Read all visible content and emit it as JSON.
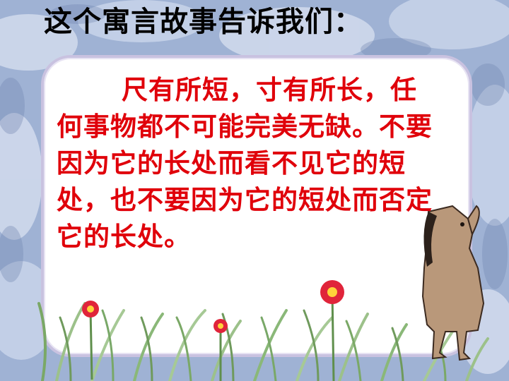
{
  "slide": {
    "title": "这个寓言故事告诉我们：",
    "body": "尺有所短，寸有所长，任何事物都不可能完美无缺。不要因为它的长处而看不见它的短处，也不要因为它的短处而否定它的长处。"
  },
  "colors": {
    "background": "#9fb2d4",
    "panel": "#ffffff",
    "panel_border": "#c9c2e0",
    "title_text": "#000000",
    "body_text": "#e0000a",
    "grass": "#6fa35a",
    "flower": "#e0243a",
    "horse": "#b9987a"
  },
  "icons": [
    "horse-illustration",
    "flower-icon",
    "grass-decoration"
  ]
}
